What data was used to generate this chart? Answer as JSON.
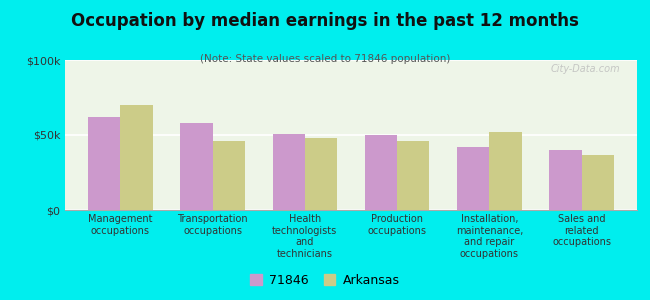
{
  "title": "Occupation by median earnings in the past 12 months",
  "subtitle": "(Note: State values scaled to 71846 population)",
  "categories": [
    "Management\noccupations",
    "Transportation\noccupations",
    "Health\ntechnologists\nand\ntechnicians",
    "Production\noccupations",
    "Installation,\nmaintenance,\nand repair\noccupations",
    "Sales and\nrelated\noccupations"
  ],
  "values_71846": [
    62000,
    58000,
    51000,
    50000,
    42000,
    40000
  ],
  "values_arkansas": [
    70000,
    46000,
    48000,
    46000,
    52000,
    37000
  ],
  "color_71846": "#cc99cc",
  "color_arkansas": "#cccc88",
  "background_outer": "#00eeee",
  "background_plot": "#eef5e8",
  "ylim": [
    0,
    100000
  ],
  "ytick_labels": [
    "$0",
    "$50k",
    "$100k"
  ],
  "legend_label_1": "71846",
  "legend_label_2": "Arkansas",
  "bar_width": 0.35,
  "watermark": "City-Data.com"
}
